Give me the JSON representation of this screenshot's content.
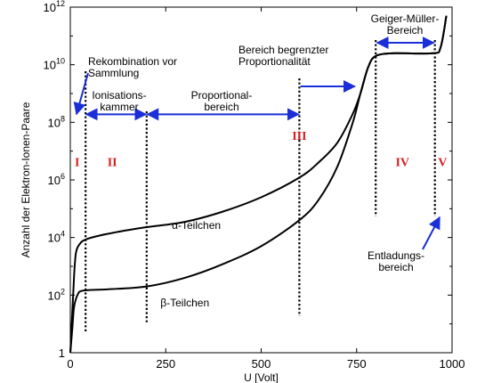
{
  "chart_data": {
    "type": "line",
    "title": "",
    "xlabel": "U [Volt]",
    "ylabel": "Anzahl der Elektron-Ionen-Paare",
    "xlim": [
      0,
      1000
    ],
    "ylim": [
      1,
      1000000000000.0
    ],
    "yscale": "log",
    "grid": false,
    "x_ticks": [
      "0",
      "250",
      "500",
      "750",
      "1000"
    ],
    "y_ticks": [
      {
        "base": "1",
        "exp": ""
      },
      {
        "base": "10",
        "exp": "2"
      },
      {
        "base": "10",
        "exp": "4"
      },
      {
        "base": "10",
        "exp": "6"
      },
      {
        "base": "10",
        "exp": "8"
      },
      {
        "base": "10",
        "exp": "10"
      },
      {
        "base": "10",
        "exp": "12"
      }
    ],
    "series": [
      {
        "name": "α-Teilchen",
        "points": [
          [
            0,
            1
          ],
          [
            5,
            20
          ],
          [
            10,
            500
          ],
          [
            15,
            3000
          ],
          [
            25,
            6000
          ],
          [
            40,
            8500
          ],
          [
            80,
            12000
          ],
          [
            150,
            18000
          ],
          [
            200,
            23000
          ],
          [
            300,
            35000
          ],
          [
            400,
            80000
          ],
          [
            500,
            250000
          ],
          [
            600,
            1200000
          ],
          [
            650,
            4000000
          ],
          [
            700,
            20000000
          ],
          [
            740,
            200000000
          ],
          [
            760,
            1000000000
          ],
          [
            780,
            8000000000
          ],
          [
            800,
            20000000000
          ],
          [
            850,
            25000000000
          ],
          [
            950,
            25000000000
          ],
          [
            970,
            40000000000
          ],
          [
            985,
            500000000000
          ]
        ]
      },
      {
        "name": "β-Teilchen",
        "points": [
          [
            0,
            1
          ],
          [
            5,
            6
          ],
          [
            10,
            40
          ],
          [
            20,
            110
          ],
          [
            30,
            140
          ],
          [
            50,
            150
          ],
          [
            100,
            160
          ],
          [
            200,
            200
          ],
          [
            300,
            400
          ],
          [
            400,
            1200
          ],
          [
            500,
            5000
          ],
          [
            600,
            40000
          ],
          [
            650,
            200000
          ],
          [
            700,
            3000000
          ],
          [
            740,
            100000000
          ],
          [
            760,
            1000000000
          ],
          [
            780,
            8000000000
          ],
          [
            800,
            20000000000
          ],
          [
            850,
            25000000000
          ],
          [
            950,
            25000000000
          ],
          [
            970,
            40000000000
          ],
          [
            985,
            500000000000
          ]
        ]
      }
    ],
    "boundaries": [
      40,
      200,
      600,
      800,
      955
    ],
    "regions": [
      {
        "label": "I",
        "x": 18,
        "y": 3000000.0
      },
      {
        "label": "II",
        "x": 110,
        "y": 3000000.0
      },
      {
        "label": "III",
        "x": 600,
        "y": 25000000.0
      },
      {
        "label": "IV",
        "x": 870,
        "y": 3000000.0
      },
      {
        "label": "V",
        "x": 975,
        "y": 3000000.0
      }
    ],
    "annotations": [
      {
        "id": "rekomb",
        "lines": [
          "Rekombination vor",
          "Sammlung"
        ]
      },
      {
        "id": "ionisation",
        "lines": [
          "Ionisations-",
          "kammer"
        ]
      },
      {
        "id": "proportional",
        "lines": [
          "Proportional-",
          "bereich"
        ]
      },
      {
        "id": "begrenzt",
        "lines": [
          "Bereich begrenzter",
          "Proportionalität"
        ]
      },
      {
        "id": "geiger",
        "lines": [
          "Geiger-Müller-",
          "Bereich"
        ]
      },
      {
        "id": "entladung",
        "lines": [
          "Entladungs-",
          "bereich"
        ]
      }
    ],
    "curve_labels": [
      {
        "text": "α-Teilchen",
        "x": 330,
        "y": 20000.0
      },
      {
        "text": "β-Teilchen",
        "x": 300,
        "y": 40
      }
    ]
  }
}
